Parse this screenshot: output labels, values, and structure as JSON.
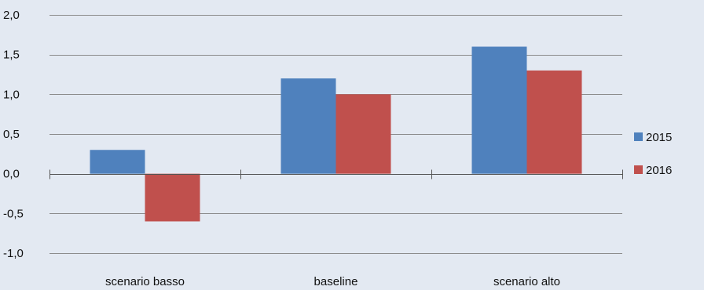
{
  "chart_data": {
    "type": "bar",
    "title": "",
    "xlabel": "",
    "ylabel": "",
    "categories": [
      "scenario basso",
      "baseline",
      "scenario alto"
    ],
    "series": [
      {
        "name": "2015",
        "values": [
          0.3,
          1.2,
          1.6
        ],
        "color": "#4f81bd"
      },
      {
        "name": "2016",
        "values": [
          -0.6,
          1.0,
          1.3
        ],
        "color": "#c0504d"
      }
    ],
    "ylim": [
      -1.0,
      2.0
    ],
    "yticks": [
      2.0,
      1.5,
      1.0,
      0.5,
      0.0,
      -0.5,
      -1.0
    ],
    "ytick_labels": [
      "2,0",
      "1,5",
      "1,0",
      "0,5",
      "0,0",
      "-0,5",
      "-1,0"
    ],
    "grid": true,
    "legend_position": "right"
  },
  "colors": {
    "background": "#e3e9f2",
    "gridline": "#8c8c8c",
    "axis": "#555555"
  }
}
